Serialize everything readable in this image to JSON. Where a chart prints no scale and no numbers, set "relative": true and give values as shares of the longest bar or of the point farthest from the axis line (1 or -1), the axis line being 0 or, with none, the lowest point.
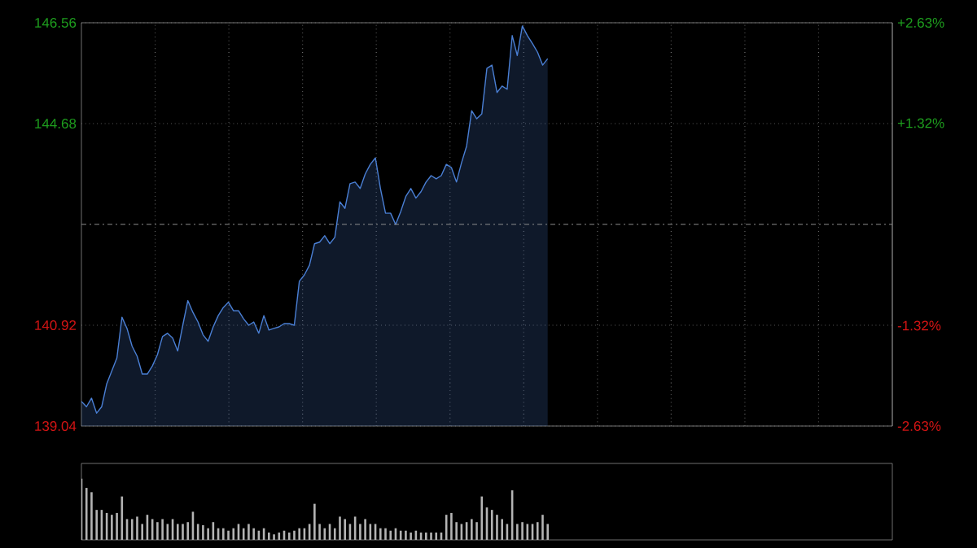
{
  "chart_data": [
    {
      "type": "area",
      "categories": [
        null,
        null,
        null,
        null,
        null,
        null,
        null,
        null,
        null,
        null,
        null,
        null,
        null,
        null,
        null,
        null,
        null,
        null,
        null,
        null,
        null,
        null,
        null,
        null,
        null,
        null,
        null,
        null,
        null,
        null,
        null,
        null,
        null,
        null,
        null,
        null,
        null,
        null,
        null,
        null,
        null,
        null,
        null,
        null,
        null,
        null,
        null,
        null,
        null,
        null,
        null,
        null,
        null,
        null,
        null,
        null,
        null,
        null,
        null,
        null,
        null,
        null,
        null,
        null,
        null,
        null,
        null,
        null,
        null,
        null,
        null,
        null,
        null,
        null,
        null,
        null,
        null,
        null,
        null,
        null,
        null,
        null,
        null,
        null,
        null,
        null,
        null,
        null,
        null,
        null,
        null,
        null,
        null,
        null,
        null,
        null,
        null,
        null,
        null,
        null,
        null,
        null,
        null,
        null,
        null,
        null,
        null,
        null,
        null,
        null,
        null,
        null,
        null,
        null,
        null,
        null,
        null,
        null,
        null,
        null,
        null,
        null,
        null,
        null,
        null,
        null,
        null,
        null,
        null,
        null,
        null,
        null,
        null,
        null,
        null,
        null,
        null,
        null,
        null,
        null,
        null,
        null,
        null,
        null,
        null,
        null,
        null,
        null,
        null,
        null,
        null,
        null,
        null,
        null,
        null,
        null,
        null,
        null,
        null,
        null,
        null
      ],
      "series": [
        {
          "color": "#4a7fd4",
          "values": [
            139.5,
            139.4,
            139.56,
            139.28,
            139.4,
            139.83,
            140.07,
            140.31,
            141.07,
            140.86,
            140.53,
            140.34,
            140.01,
            140.01,
            140.16,
            140.37,
            140.71,
            140.77,
            140.68,
            140.44,
            140.92,
            141.38,
            141.16,
            140.98,
            140.74,
            140.62,
            140.89,
            141.1,
            141.25,
            141.35,
            141.19,
            141.19,
            141.04,
            140.92,
            140.98,
            140.77,
            141.1,
            140.83,
            140.86,
            140.89,
            140.95,
            140.95,
            140.92,
            141.74,
            141.86,
            142.04,
            142.44,
            142.47,
            142.59,
            142.44,
            142.56,
            143.22,
            143.1,
            143.56,
            143.59,
            143.47,
            143.74,
            143.92,
            144.04,
            143.47,
            143.01,
            143.01,
            142.8,
            143.04,
            143.32,
            143.47,
            143.29,
            143.41,
            143.59,
            143.71,
            143.65,
            143.71,
            143.92,
            143.86,
            143.59,
            143.95,
            144.26,
            144.92,
            144.77,
            144.86,
            145.71,
            145.77,
            145.26,
            145.38,
            145.32,
            146.32,
            145.95,
            146.5,
            146.32,
            146.17,
            146.01,
            145.77,
            145.89,
            null,
            null,
            null,
            null,
            null,
            null,
            null,
            null,
            null,
            null,
            null,
            null,
            null,
            null,
            null,
            null,
            null,
            null,
            null,
            null,
            null,
            null,
            null,
            null,
            null,
            null,
            null,
            null,
            null,
            null,
            null,
            null,
            null,
            null,
            null,
            null,
            null,
            null,
            null,
            null,
            null,
            null,
            null,
            null,
            null,
            null,
            null,
            null,
            null,
            null,
            null,
            null,
            null,
            null,
            null,
            null,
            null,
            null,
            null,
            null,
            null,
            null,
            null,
            null,
            null,
            null,
            null,
            null
          ]
        }
      ],
      "ylim": [
        139.04,
        146.56
      ],
      "yticks": [
        139.04,
        140.92,
        144.68,
        146.56
      ],
      "y2lim": [
        -2.63,
        2.63
      ],
      "y2ticks": [
        {
          "value": -2.63,
          "label": "-2.63%"
        },
        {
          "value": -1.32,
          "label": "-1.32%"
        },
        {
          "value": 1.32,
          "label": "+1.32%"
        },
        {
          "value": 2.63,
          "label": "+2.63%"
        }
      ],
      "ref_lines": [
        {
          "axis": "y",
          "value": 142.8,
          "color": "#8c8c8c",
          "line_style": "dashed"
        }
      ],
      "grid": true,
      "tick_labels": "y"
    },
    {
      "type": "bar",
      "relative": true,
      "color": "#b4b4b4",
      "tick_labels": false,
      "categories": [
        null,
        null,
        null,
        null,
        null,
        null,
        null,
        null,
        null,
        null,
        null,
        null,
        null,
        null,
        null,
        null,
        null,
        null,
        null,
        null,
        null,
        null,
        null,
        null,
        null,
        null,
        null,
        null,
        null,
        null,
        null,
        null,
        null,
        null,
        null,
        null,
        null,
        null,
        null,
        null,
        null,
        null,
        null,
        null,
        null,
        null,
        null,
        null,
        null,
        null,
        null,
        null,
        null,
        null,
        null,
        null,
        null,
        null,
        null,
        null,
        null,
        null,
        null,
        null,
        null,
        null,
        null,
        null,
        null,
        null,
        null,
        null,
        null,
        null,
        null,
        null,
        null,
        null,
        null,
        null,
        null,
        null,
        null,
        null,
        null,
        null,
        null,
        null,
        null,
        null,
        null,
        null,
        null,
        null,
        null,
        null,
        null,
        null,
        null,
        null,
        null,
        null,
        null,
        null,
        null,
        null,
        null,
        null,
        null,
        null,
        null,
        null,
        null,
        null,
        null,
        null,
        null,
        null,
        null,
        null,
        null,
        null,
        null,
        null,
        null,
        null,
        null,
        null,
        null,
        null,
        null,
        null,
        null,
        null,
        null,
        null,
        null,
        null,
        null,
        null,
        null,
        null,
        null,
        null,
        null,
        null,
        null,
        null,
        null,
        null,
        null,
        null,
        null,
        null,
        null,
        null,
        null,
        null,
        null,
        null,
        null
      ],
      "values": [
        1.0,
        0.85,
        0.78,
        0.49,
        0.49,
        0.44,
        0.41,
        0.44,
        0.71,
        0.34,
        0.34,
        0.38,
        0.26,
        0.41,
        0.34,
        0.29,
        0.34,
        0.26,
        0.34,
        0.26,
        0.26,
        0.29,
        0.46,
        0.26,
        0.24,
        0.19,
        0.29,
        0.19,
        0.19,
        0.15,
        0.19,
        0.26,
        0.19,
        0.26,
        0.19,
        0.15,
        0.19,
        0.12,
        0.09,
        0.12,
        0.15,
        0.12,
        0.15,
        0.19,
        0.19,
        0.26,
        0.59,
        0.26,
        0.19,
        0.26,
        0.19,
        0.38,
        0.34,
        0.26,
        0.38,
        0.26,
        0.34,
        0.26,
        0.26,
        0.19,
        0.19,
        0.15,
        0.19,
        0.15,
        0.15,
        0.12,
        0.15,
        0.12,
        0.12,
        0.12,
        0.12,
        0.12,
        0.41,
        0.44,
        0.29,
        0.26,
        0.29,
        0.34,
        0.29,
        0.71,
        0.53,
        0.49,
        0.41,
        0.34,
        0.26,
        0.81,
        0.26,
        0.29,
        0.26,
        0.26,
        0.29,
        0.41,
        0.26,
        null,
        null,
        null,
        null,
        null,
        null,
        null,
        null,
        null,
        null,
        null,
        null,
        null,
        null,
        null,
        null,
        null,
        null,
        null,
        null,
        null,
        null,
        null,
        null,
        null,
        null,
        null,
        null,
        null,
        null,
        null,
        null,
        null,
        null,
        null,
        null,
        null,
        null,
        null,
        null,
        null,
        null,
        null,
        null,
        null,
        null,
        null,
        null,
        null,
        null,
        null,
        null,
        null,
        null,
        null,
        null,
        null,
        null,
        null,
        null,
        null,
        null,
        null,
        null,
        null,
        null,
        null,
        null
      ]
    }
  ]
}
